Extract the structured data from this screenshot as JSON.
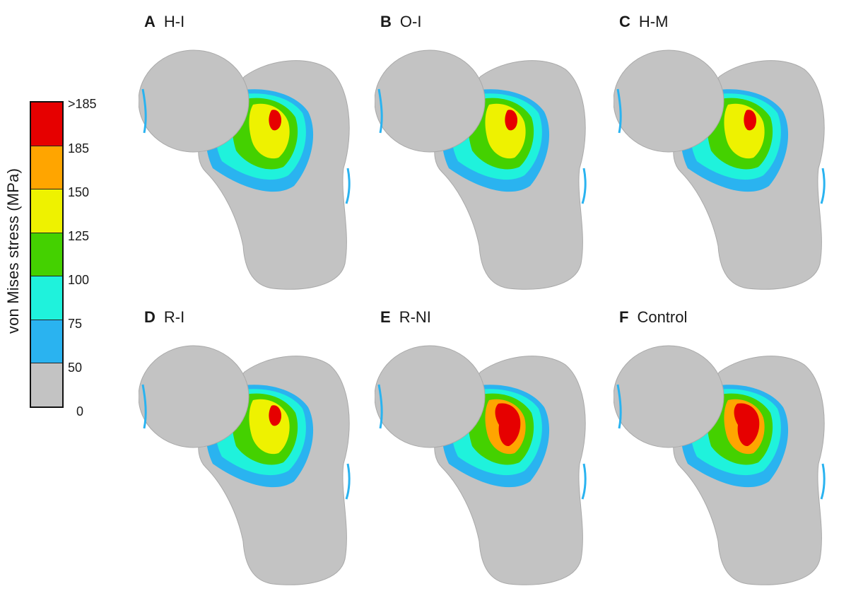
{
  "colorbar": {
    "axis_label": "von Mises stress (MPa)",
    "ticks": [
      ">185",
      "185",
      "150",
      "125",
      "100",
      "75",
      "50",
      "0"
    ],
    "colors": [
      "#e60000",
      "#ffa500",
      "#eef200",
      "#44d100",
      "#1ff2dc",
      "#2ab3f0",
      "#c3c3c3"
    ]
  },
  "panels": [
    {
      "letter": "A",
      "name": "H-I"
    },
    {
      "letter": "B",
      "name": "O-I"
    },
    {
      "letter": "C",
      "name": "H-M"
    },
    {
      "letter": "D",
      "name": "R-I"
    },
    {
      "letter": "E",
      "name": "R-NI"
    },
    {
      "letter": "F",
      "name": "Control"
    }
  ]
}
